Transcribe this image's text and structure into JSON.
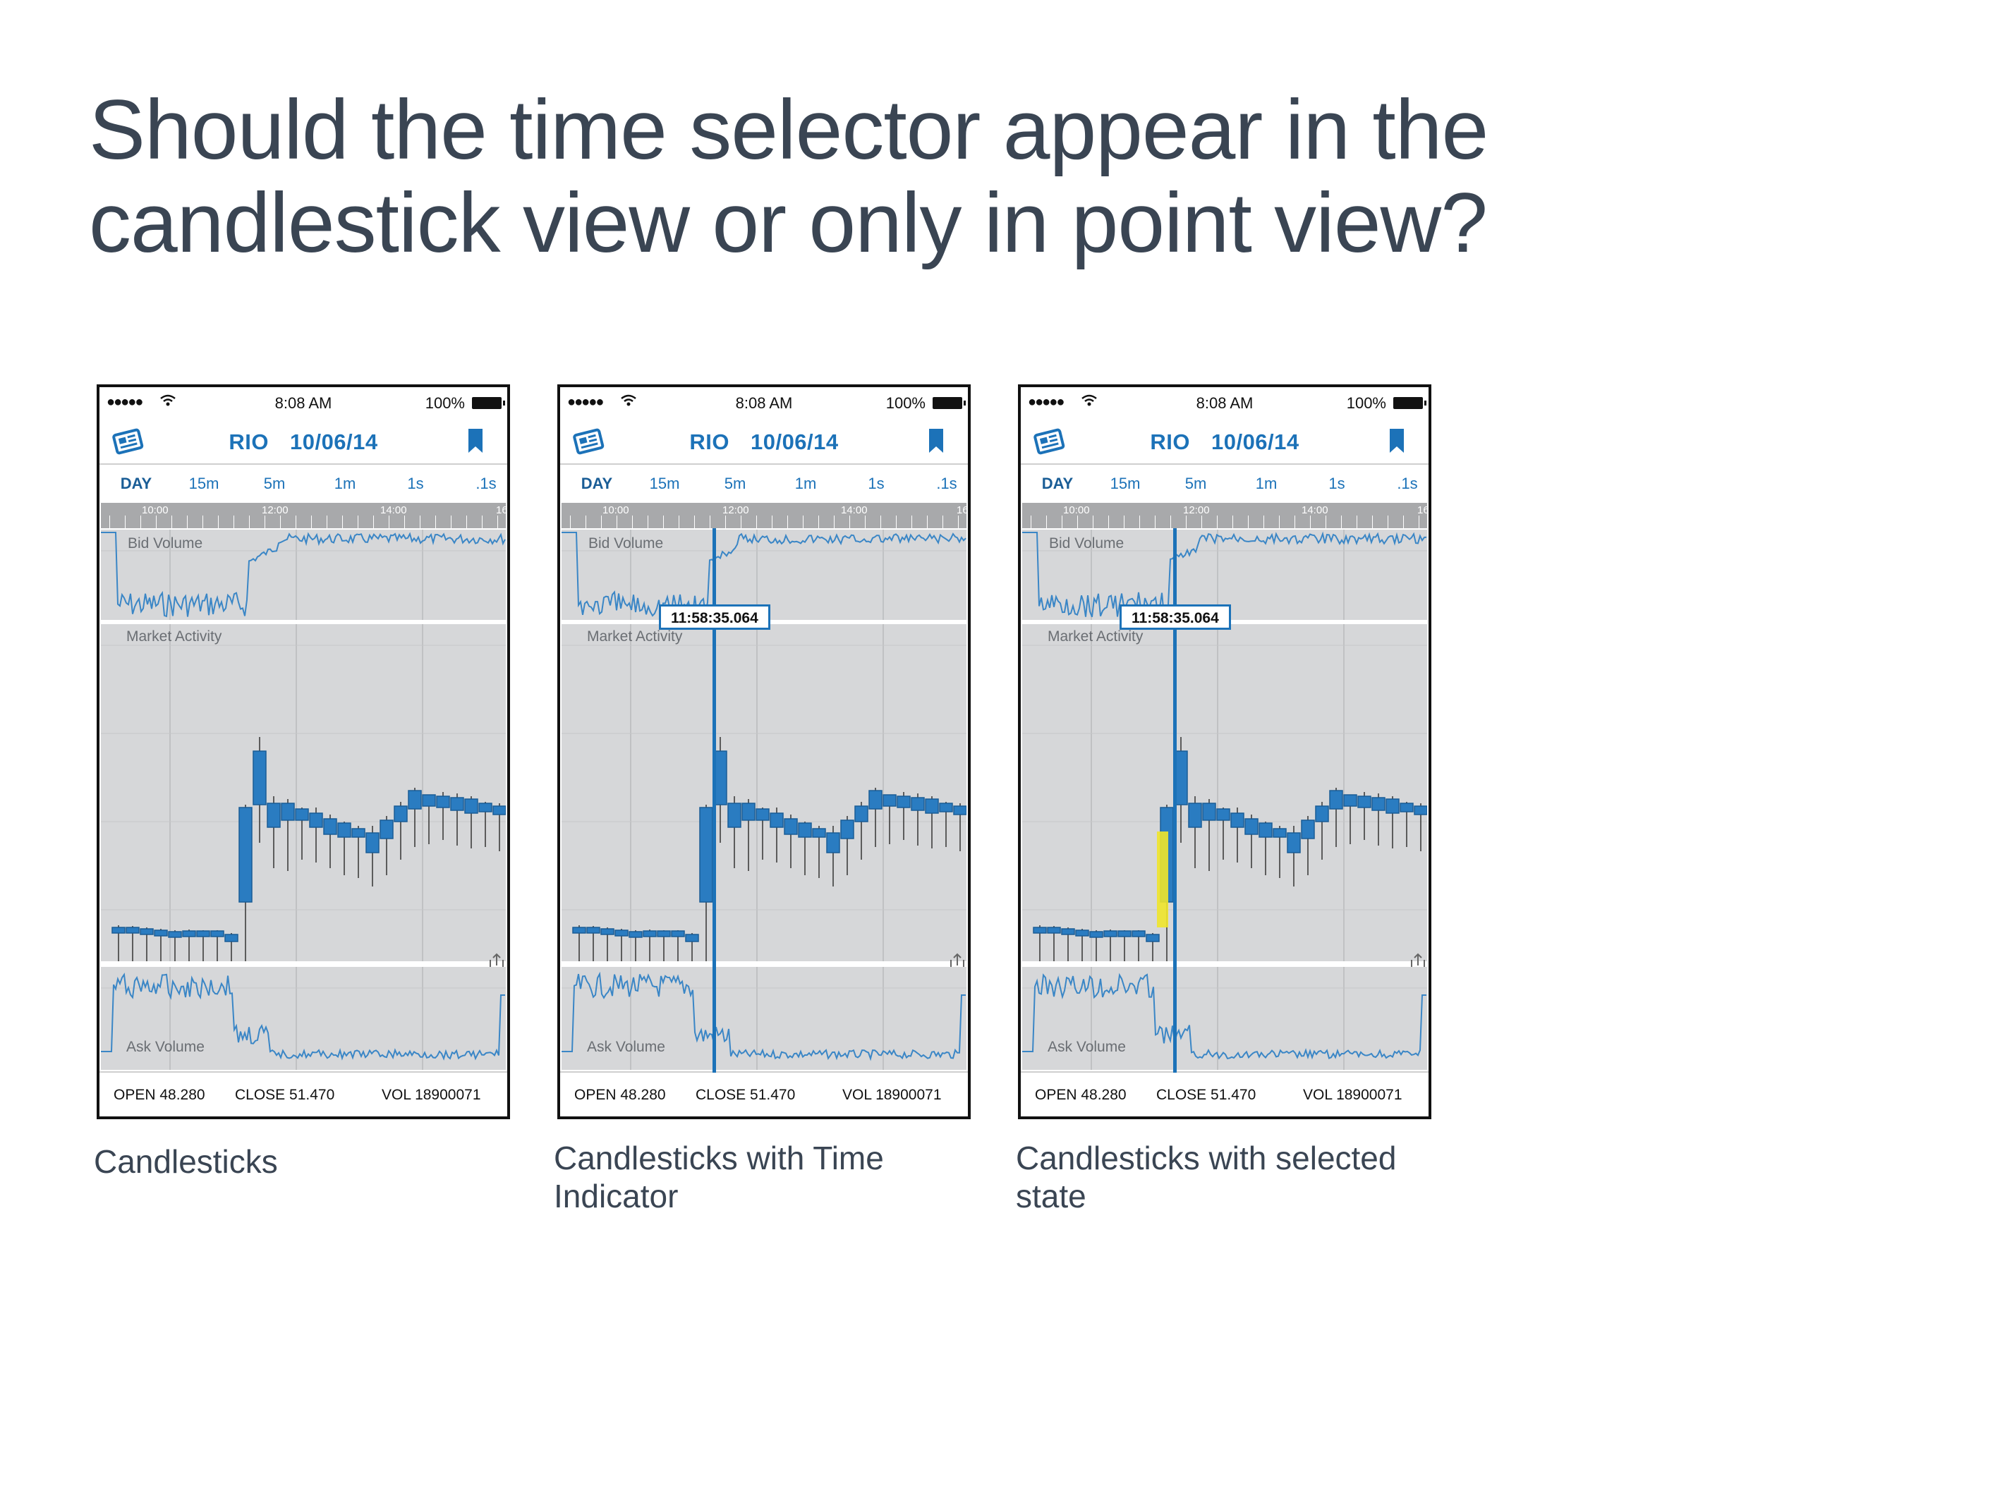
{
  "headline": {
    "line1": "Should the time selector appear in the",
    "line2": "candlestick view or only in point view?"
  },
  "phone": {
    "status": {
      "signal": "●●●●●",
      "time": "8:08 AM",
      "battery": "100%"
    },
    "symbol": "RIO",
    "date": "10/06/14",
    "tabs": [
      "DAY",
      "15m",
      "5m",
      "1m",
      "1s",
      ".1s"
    ],
    "active_tab": "DAY",
    "axis_labels": [
      "10:00",
      "12:00",
      "14:00",
      "16"
    ],
    "labels": {
      "bid": "Bid Volume",
      "market": "Market Activity",
      "ask": "Ask Volume"
    },
    "footer": {
      "open": "OPEN 48.280",
      "close": "CLOSE 51.470",
      "vol": "VOL 18900071"
    },
    "indicator_time": "11:58:35.064"
  },
  "screens": [
    {
      "caption": "Candlesticks",
      "show_indicator": false,
      "selected": false
    },
    {
      "caption": "Candlesticks with Time Indicator",
      "show_indicator": true,
      "selected": false
    },
    {
      "caption": "Candlesticks with selected state",
      "show_indicator": true,
      "selected": true
    }
  ],
  "colors": {
    "accent": "#1c72b8",
    "panel": "#d6d7d9",
    "highlight": "#f0e62a"
  },
  "icons": {
    "news": "newspaper-icon",
    "bookmark": "bookmark-icon",
    "share": "share-icon",
    "wifi": "wifi-icon"
  }
}
